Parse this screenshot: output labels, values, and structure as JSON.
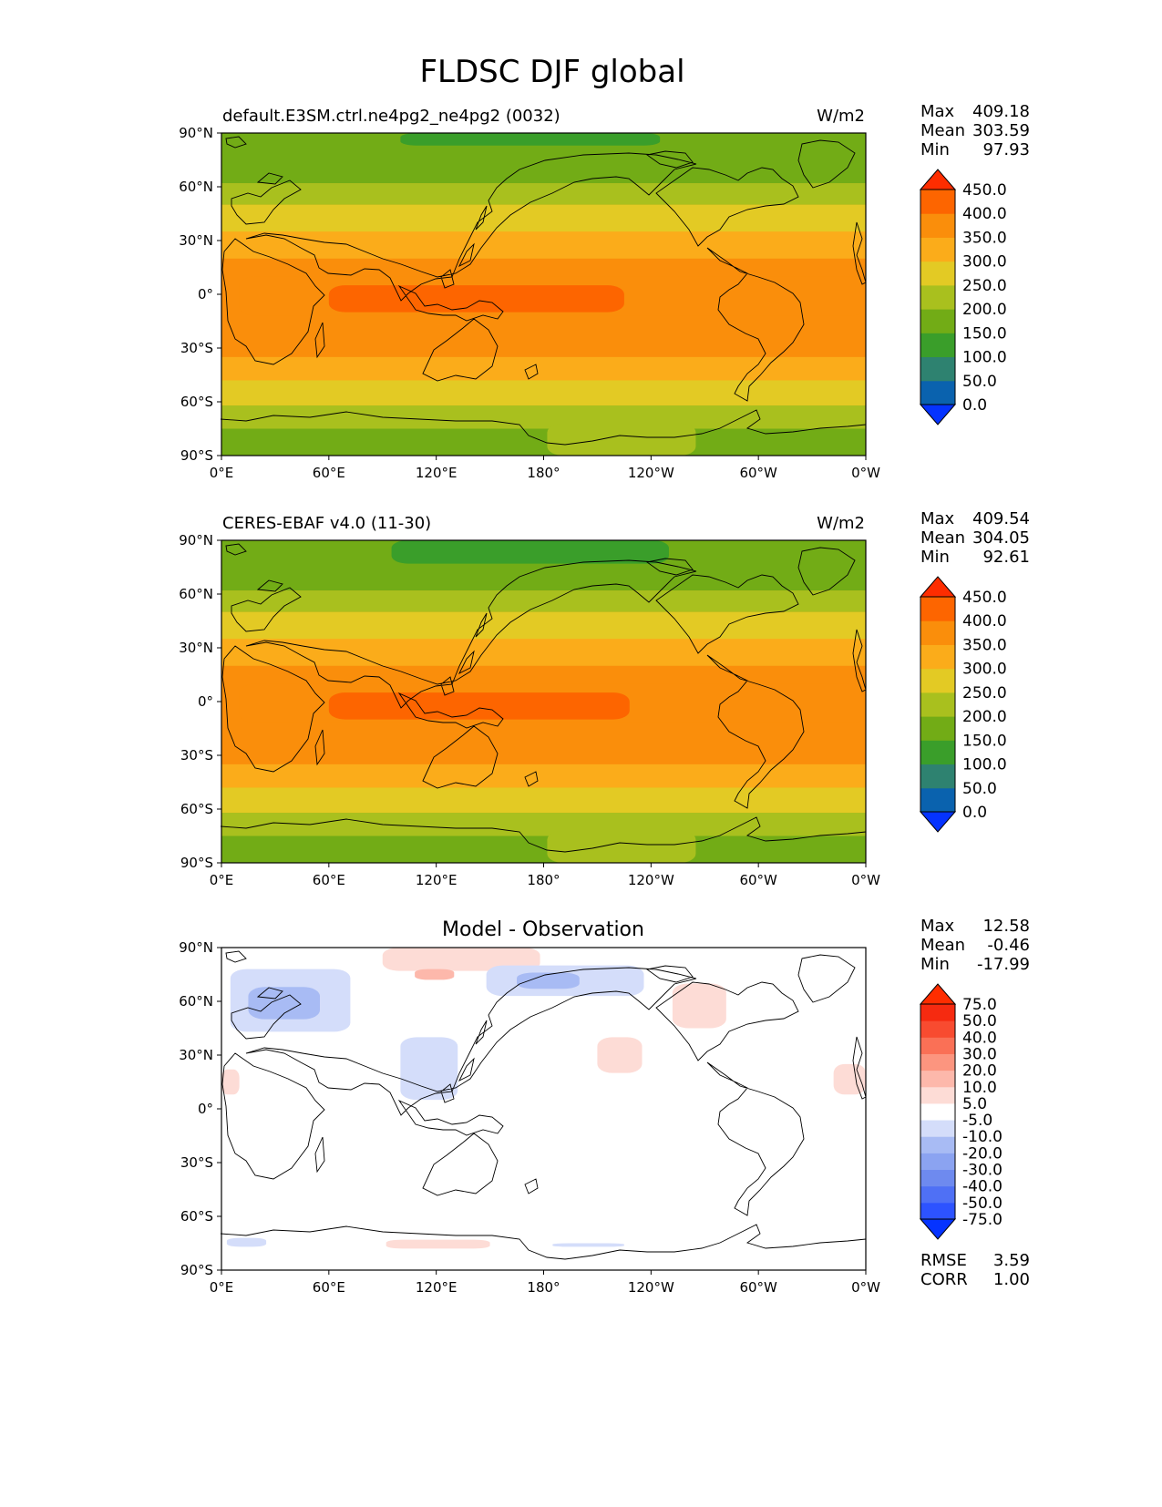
{
  "figure": {
    "title": "FLDSC DJF global"
  },
  "land_color": "#ffffff",
  "axes": {
    "lat_ticks": [
      "90°N",
      "60°N",
      "30°N",
      "0°",
      "30°S",
      "60°S",
      "90°S"
    ],
    "lon_ticks": [
      "0°E",
      "60°E",
      "120°E",
      "180°",
      "120°W",
      "60°W",
      "0°W"
    ],
    "lat_range": [
      -90,
      90
    ],
    "lon_range": [
      0,
      360
    ]
  },
  "chart_data": [
    {
      "type": "heatmap",
      "title": "default.E3SM.ctrl.ne4pg2_ne4pg2 (0032)",
      "units": "W/m2",
      "stats": {
        "max_label": "Max",
        "max": "409.18",
        "mean_label": "Mean",
        "mean": "303.59",
        "min_label": "Min",
        "min": "97.93"
      },
      "colorbar": {
        "levels": [
          "0.0",
          "50.0",
          "100.0",
          "150.0",
          "200.0",
          "250.0",
          "300.0",
          "350.0",
          "400.0",
          "450.0"
        ],
        "colors": [
          "#0533ff",
          "#0a62ae",
          "#2e8270",
          "#3a9e2a",
          "#72ac16",
          "#a9c01e",
          "#e3ca24",
          "#fbac1a",
          "#fa8e0b",
          "#fd6500",
          "#fe2d00"
        ]
      },
      "field": {
        "base": 300,
        "bands": [
          {
            "lat": [
              -90,
              -75
            ],
            "value": 150
          },
          {
            "lat": [
              -75,
              -62
            ],
            "value": 200
          },
          {
            "lat": [
              -62,
              -48
            ],
            "value": 250
          },
          {
            "lat": [
              -48,
              -35
            ],
            "value": 300
          },
          {
            "lat": [
              -35,
              20
            ],
            "value": 350
          },
          {
            "lat": [
              20,
              35
            ],
            "value": 300
          },
          {
            "lat": [
              35,
              50
            ],
            "value": 250
          },
          {
            "lat": [
              50,
              62
            ],
            "value": 200
          },
          {
            "lat": [
              62,
              90
            ],
            "value": 150
          }
        ],
        "patches": [
          {
            "lon": [
              100,
              245
            ],
            "lat": [
              83,
              90
            ],
            "value": 100
          },
          {
            "lon": [
              10,
              360
            ],
            "lat": [
              -12,
              10
            ],
            "value": 350
          },
          {
            "lon": [
              60,
              225
            ],
            "lat": [
              -10,
              5
            ],
            "value": 400
          },
          {
            "lon": [
              182,
              265
            ],
            "lat": [
              -90,
              -72
            ],
            "value": 200
          }
        ]
      }
    },
    {
      "type": "heatmap",
      "title": "CERES-EBAF v4.0 (11-30)",
      "units": "W/m2",
      "stats": {
        "max_label": "Max",
        "max": "409.54",
        "mean_label": "Mean",
        "mean": "304.05",
        "min_label": "Min",
        "min": "92.61"
      },
      "colorbar": {
        "levels": [
          "0.0",
          "50.0",
          "100.0",
          "150.0",
          "200.0",
          "250.0",
          "300.0",
          "350.0",
          "400.0",
          "450.0"
        ],
        "colors": [
          "#0533ff",
          "#0a62ae",
          "#2e8270",
          "#3a9e2a",
          "#72ac16",
          "#a9c01e",
          "#e3ca24",
          "#fbac1a",
          "#fa8e0b",
          "#fd6500",
          "#fe2d00"
        ]
      },
      "field": {
        "base": 300,
        "bands": [
          {
            "lat": [
              -90,
              -75
            ],
            "value": 150
          },
          {
            "lat": [
              -75,
              -62
            ],
            "value": 200
          },
          {
            "lat": [
              -62,
              -48
            ],
            "value": 250
          },
          {
            "lat": [
              -48,
              -35
            ],
            "value": 300
          },
          {
            "lat": [
              -35,
              20
            ],
            "value": 350
          },
          {
            "lat": [
              20,
              35
            ],
            "value": 300
          },
          {
            "lat": [
              35,
              50
            ],
            "value": 250
          },
          {
            "lat": [
              50,
              62
            ],
            "value": 200
          },
          {
            "lat": [
              62,
              90
            ],
            "value": 150
          }
        ],
        "patches": [
          {
            "lon": [
              95,
              250
            ],
            "lat": [
              77,
              90
            ],
            "value": 100
          },
          {
            "lon": [
              10,
              360
            ],
            "lat": [
              -12,
              10
            ],
            "value": 350
          },
          {
            "lon": [
              60,
              228
            ],
            "lat": [
              -10,
              5
            ],
            "value": 400
          },
          {
            "lon": [
              182,
              265
            ],
            "lat": [
              -90,
              -72
            ],
            "value": 200
          }
        ]
      }
    },
    {
      "type": "heatmap",
      "title": "Model - Observation",
      "units": "",
      "stats": {
        "max_label": "Max",
        "max": "12.58",
        "mean_label": "Mean",
        "mean": "-0.46",
        "min_label": "Min",
        "min": "-17.99"
      },
      "metrics": {
        "rmse_label": "RMSE",
        "rmse": "3.59",
        "corr_label": "CORR",
        "corr": "1.00"
      },
      "colorbar": {
        "levels": [
          "-75.0",
          "-50.0",
          "-40.0",
          "-30.0",
          "-20.0",
          "-10.0",
          "-5.0",
          "5.0",
          "10.0",
          "20.0",
          "30.0",
          "40.0",
          "50.0",
          "75.0"
        ],
        "colors": [
          "#0533ff",
          "#2d53ff",
          "#4f70f5",
          "#6e8aef",
          "#8ba3f1",
          "#a8bbf4",
          "#d4ddfa",
          "#ffffff",
          "#fddcd6",
          "#fdb8ab",
          "#fc957f",
          "#fa7056",
          "#f84b30",
          "#f62a10",
          "#fe2d00"
        ]
      },
      "field": {
        "base": 0,
        "bands": [],
        "patches": [
          {
            "lon": [
              90,
              178
            ],
            "lat": [
              77,
              90
            ],
            "value": 7
          },
          {
            "lon": [
              5,
              72
            ],
            "lat": [
              43,
              78
            ],
            "value": -7
          },
          {
            "lon": [
              15,
              55
            ],
            "lat": [
              50,
              68
            ],
            "value": -12
          },
          {
            "lon": [
              148,
              236
            ],
            "lat": [
              63,
              80
            ],
            "value": -7
          },
          {
            "lon": [
              165,
              200
            ],
            "lat": [
              67,
              76
            ],
            "value": -12
          },
          {
            "lon": [
              108,
              130
            ],
            "lat": [
              72,
              78
            ],
            "value": 12
          },
          {
            "lon": [
              100,
              132
            ],
            "lat": [
              5,
              40
            ],
            "value": -7
          },
          {
            "lon": [
              252,
              282
            ],
            "lat": [
              45,
              70
            ],
            "value": 7
          },
          {
            "lon": [
              210,
              235
            ],
            "lat": [
              20,
              40
            ],
            "value": 7
          },
          {
            "lon": [
              342,
              360
            ],
            "lat": [
              8,
              25
            ],
            "value": 7
          },
          {
            "lon": [
              0,
              10
            ],
            "lat": [
              8,
              22
            ],
            "value": 7
          },
          {
            "lon": [
              92,
              150
            ],
            "lat": [
              -78,
              -73
            ],
            "value": 7
          },
          {
            "lon": [
              3,
              25
            ],
            "lat": [
              -77,
              -72
            ],
            "value": -7
          },
          {
            "lon": [
              185,
              225
            ],
            "lat": [
              -77,
              -75
            ],
            "value": -7
          }
        ]
      }
    }
  ]
}
